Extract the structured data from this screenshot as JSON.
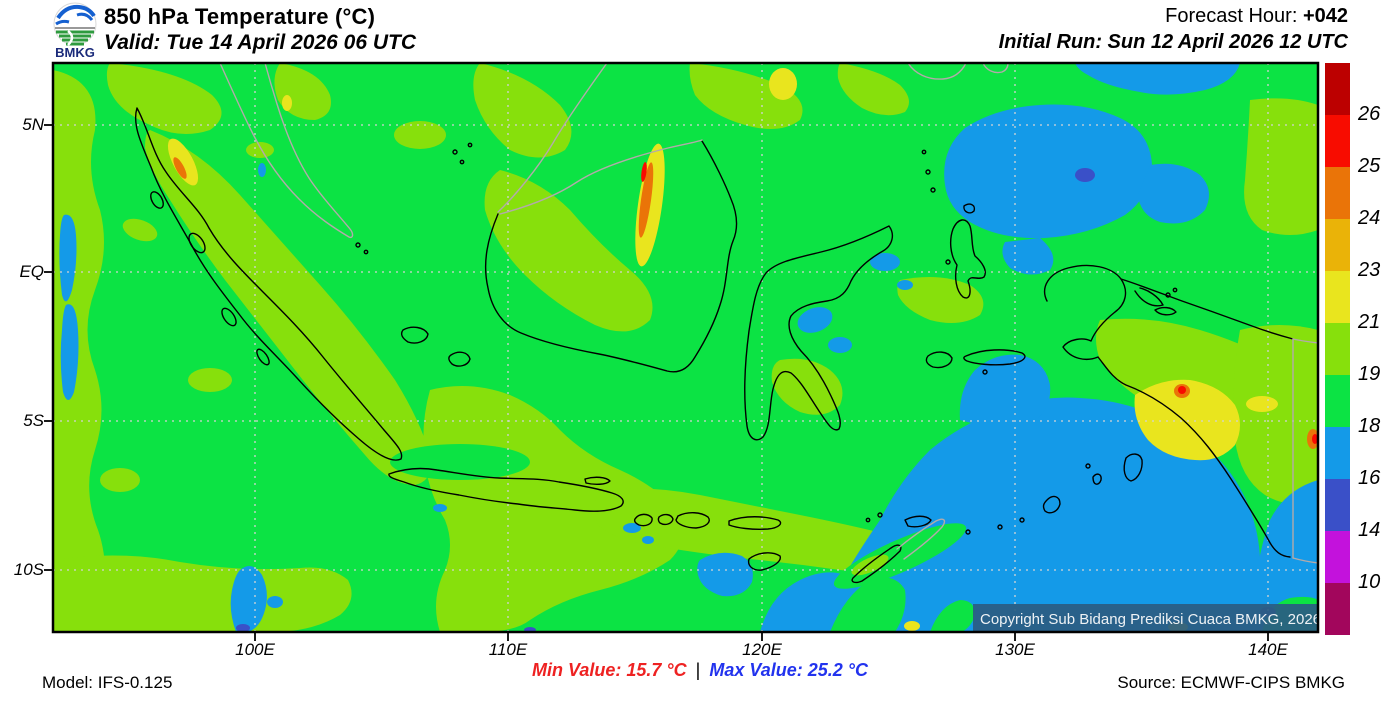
{
  "header": {
    "title": "850 hPa Temperature (°C)",
    "valid": "Valid: Tue 14 April 2026 06 UTC",
    "forecast_hour_label": "Forecast Hour: ",
    "forecast_hour_value": "+042",
    "initial_run": "Initial Run: Sun 12 April 2026 12 UTC",
    "logo_text": "BMKG"
  },
  "map": {
    "copyright": "Copyright Sub Bidang Prediksi Cuaca BMKG, 2026",
    "x_tick_labels": [
      "100E",
      "110E",
      "120E",
      "130E",
      "140E"
    ],
    "y_tick_labels": [
      "5N",
      "EQ",
      "5S",
      "10S"
    ]
  },
  "colorbar": {
    "labels": [
      "26",
      "25",
      "24",
      "23",
      "21",
      "19",
      "18",
      "16",
      "14",
      "10"
    ],
    "colors": [
      "#bc0000",
      "#f80c00",
      "#ea7408",
      "#eab308",
      "#e9e51e",
      "#87e00c",
      "#0ce344",
      "#149ae8",
      "#3a50c8",
      "#c312dc",
      "#a2065c"
    ]
  },
  "field_colors": {
    "green_18_19": "#0ce344",
    "chartreuse_19_21": "#87e00c",
    "yellow_21_23": "#e9e51e",
    "orange_23_25": "#ea7408",
    "red_25_26": "#f80c00",
    "skyblue_16_18": "#149ae8",
    "royalblue_14_16": "#3a50c8"
  },
  "footer": {
    "model": "Model: IFS-0.125",
    "min_value": "Min Value: 15.7 °C",
    "separator": "|",
    "max_value": "Max Value: 25.2 °C",
    "source": "Source: ECMWF-CIPS BMKG",
    "min_color": "#ee2222",
    "max_color": "#2233ee"
  }
}
